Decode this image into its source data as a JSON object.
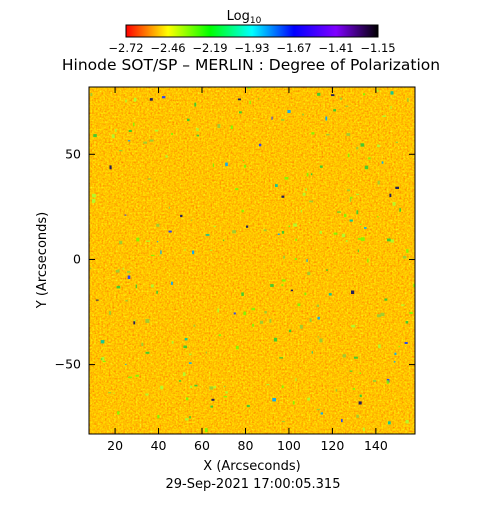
{
  "chart_data": {
    "type": "heatmap",
    "title": "Hinode SOT/SP – MERLIN : Degree of Polarization",
    "xlabel": "X (Arcseconds)",
    "ylabel": "Y (Arcseconds)",
    "timestamp": "29-Sep-2021 17:00:05.315",
    "colorbar": {
      "label_base": "Log",
      "label_sub": "10",
      "tick_labels": [
        "-2.72",
        "-2.46",
        "-2.19",
        "-1.93",
        "-1.67",
        "-1.41",
        "-1.15"
      ],
      "range": [
        -2.72,
        -1.15
      ],
      "colormap": [
        "#ff0000",
        "#ffff00",
        "#00ff00",
        "#00ffff",
        "#0000ff",
        "#8000ff",
        "#000000"
      ]
    },
    "xlim": [
      8,
      158
    ],
    "ylim": [
      -83,
      82
    ],
    "xticks": [
      20,
      40,
      60,
      80,
      100,
      120,
      140
    ],
    "yticks": [
      50,
      0,
      -50
    ],
    "grid": false,
    "dominant_color": "#ff8c00"
  }
}
